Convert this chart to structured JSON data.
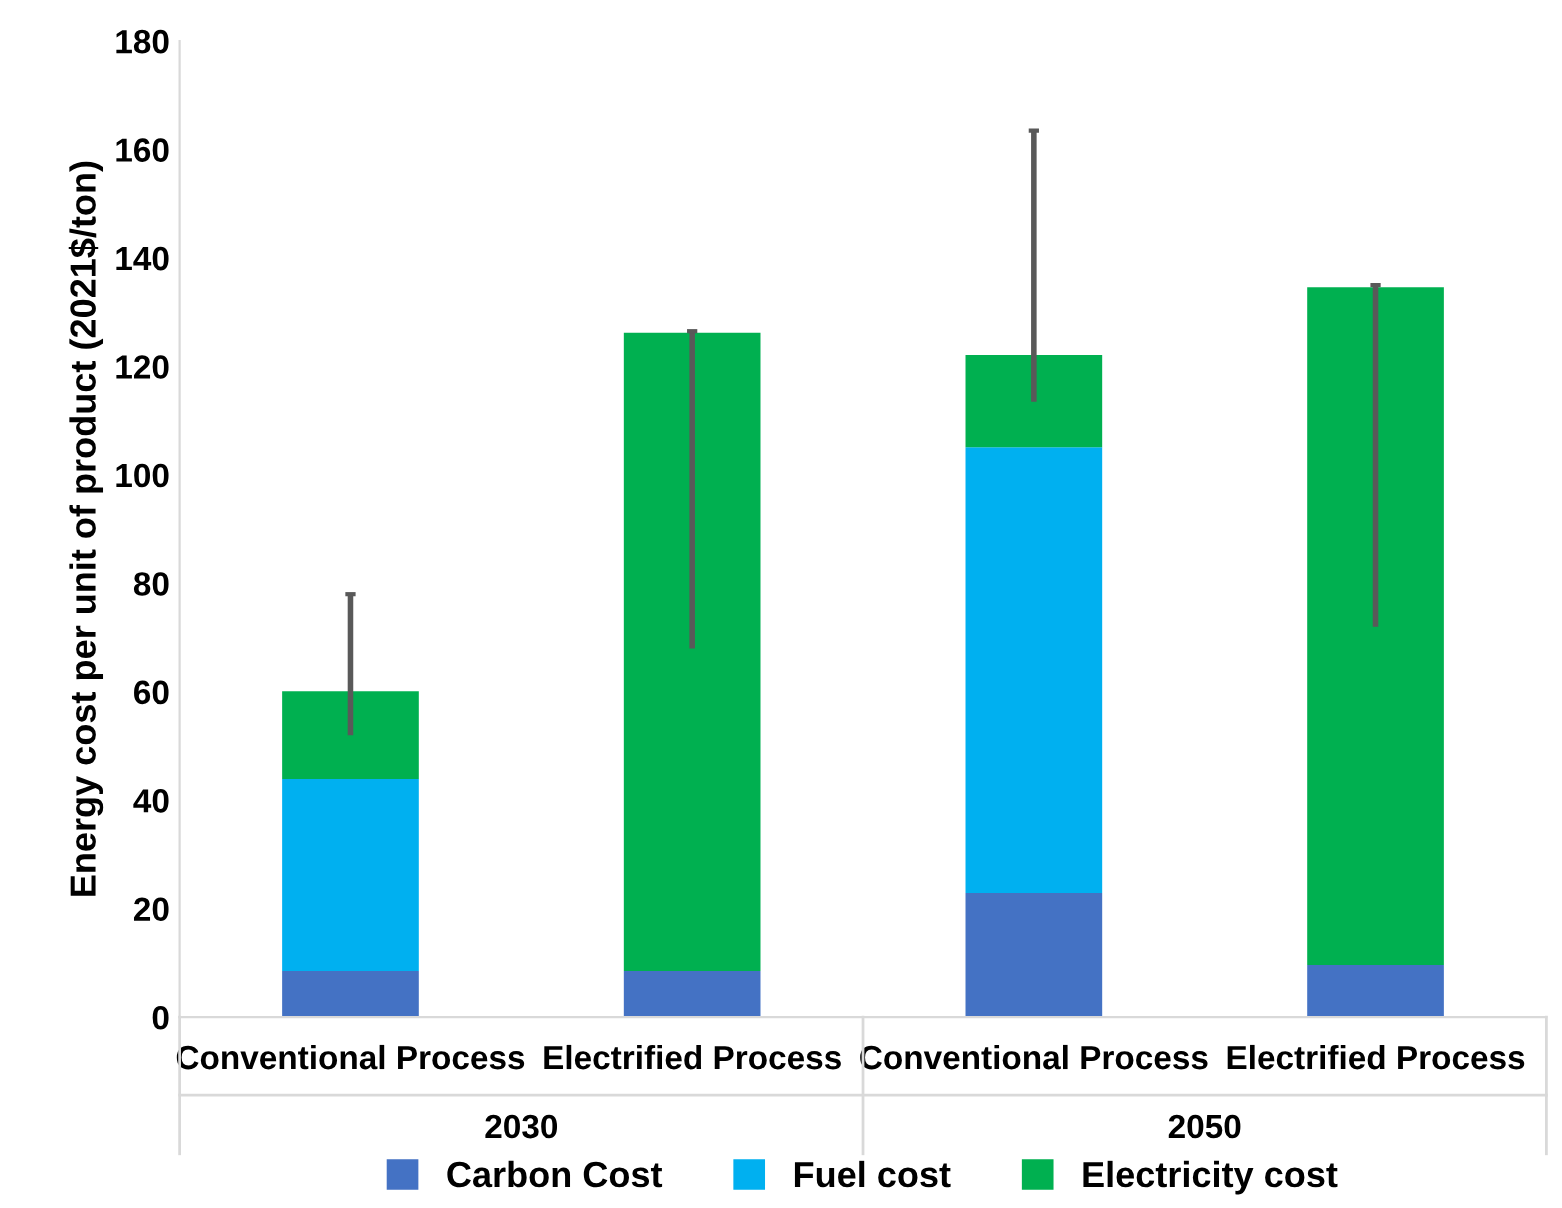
{
  "chart_data": {
    "type": "bar",
    "stacked": true,
    "ylabel": "Energy cost per unit of product (2021$/ton)",
    "categories": [
      "Conventional Process",
      "Electrified Process",
      "Conventional Process",
      "Electrified Process"
    ],
    "annotations": [
      "2030",
      "2050"
    ],
    "series": [
      {
        "name": "Carbon Cost",
        "color": "#4472c4",
        "values": [
          8.5,
          8.5,
          22.9,
          9.6
        ]
      },
      {
        "name": "Fuel cost",
        "color": "#00b0f0",
        "values": [
          35.4,
          0,
          82.2,
          0
        ]
      },
      {
        "name": "Electricity cost",
        "color": "#00b050",
        "values": [
          16.2,
          117.7,
          17.0,
          125.0
        ],
        "errors": [
          [
            52,
            78
          ],
          [
            68,
            126.5
          ],
          [
            113.5,
            163.5
          ],
          [
            72,
            135
          ]
        ]
      }
    ],
    "ylim": [
      0,
      180
    ],
    "yticks": [
      0,
      20,
      40,
      60,
      80,
      100,
      120,
      140,
      160,
      180
    ],
    "grid": false,
    "legend": "bottom"
  }
}
